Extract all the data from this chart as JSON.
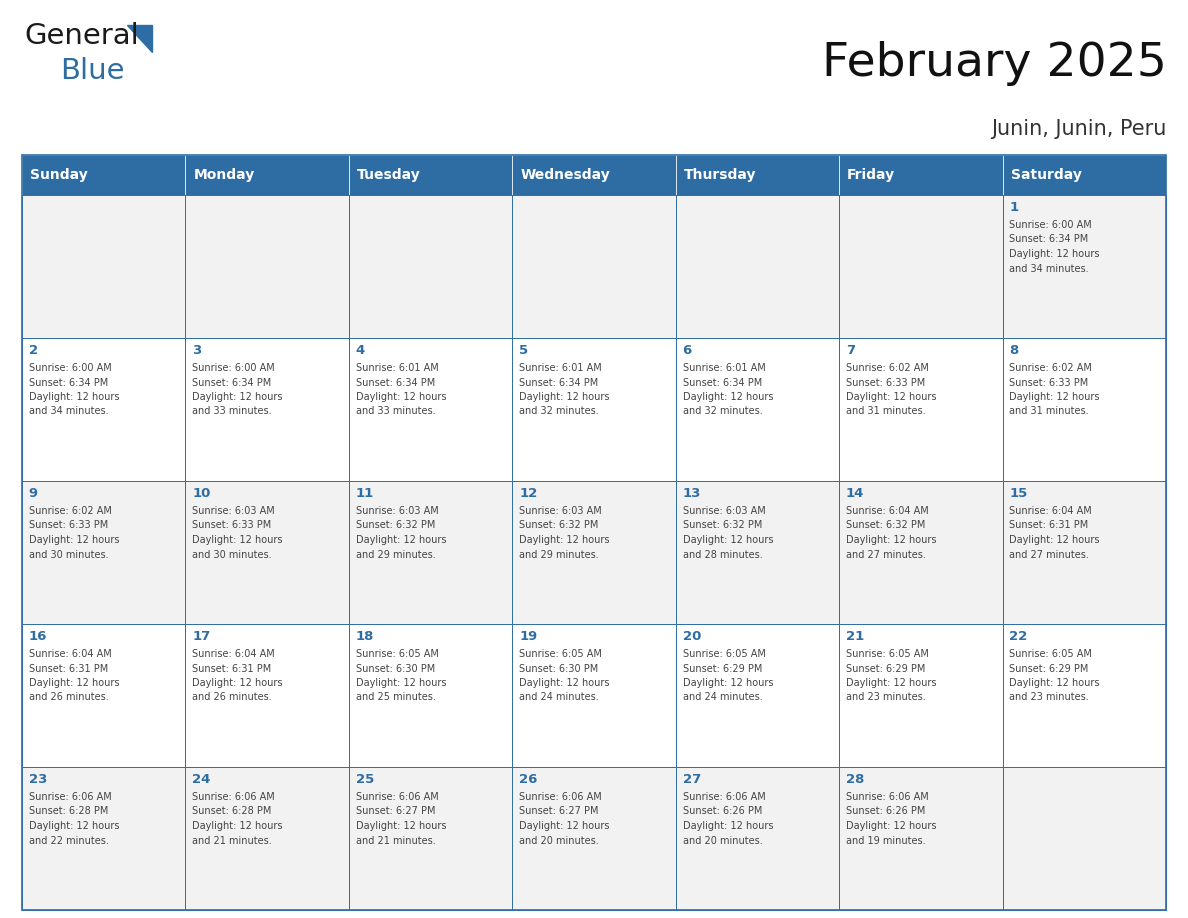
{
  "title": "February 2025",
  "subtitle": "Junin, Junin, Peru",
  "days_of_week": [
    "Sunday",
    "Monday",
    "Tuesday",
    "Wednesday",
    "Thursday",
    "Friday",
    "Saturday"
  ],
  "header_bg": "#2E6DA4",
  "header_text": "#FFFFFF",
  "cell_bg_odd": "#F2F2F2",
  "cell_bg_even": "#FFFFFF",
  "border_color": "#2E6DA4",
  "day_number_color": "#2E6DA4",
  "text_color": "#444444",
  "weeks": [
    [
      null,
      null,
      null,
      null,
      null,
      null,
      1
    ],
    [
      2,
      3,
      4,
      5,
      6,
      7,
      8
    ],
    [
      9,
      10,
      11,
      12,
      13,
      14,
      15
    ],
    [
      16,
      17,
      18,
      19,
      20,
      21,
      22
    ],
    [
      23,
      24,
      25,
      26,
      27,
      28,
      null
    ]
  ],
  "day_data": {
    "1": {
      "sunrise": "6:00 AM",
      "sunset": "6:34 PM",
      "hours": "12 hours",
      "minutes": "and 34 minutes."
    },
    "2": {
      "sunrise": "6:00 AM",
      "sunset": "6:34 PM",
      "hours": "12 hours",
      "minutes": "and 34 minutes."
    },
    "3": {
      "sunrise": "6:00 AM",
      "sunset": "6:34 PM",
      "hours": "12 hours",
      "minutes": "and 33 minutes."
    },
    "4": {
      "sunrise": "6:01 AM",
      "sunset": "6:34 PM",
      "hours": "12 hours",
      "minutes": "and 33 minutes."
    },
    "5": {
      "sunrise": "6:01 AM",
      "sunset": "6:34 PM",
      "hours": "12 hours",
      "minutes": "and 32 minutes."
    },
    "6": {
      "sunrise": "6:01 AM",
      "sunset": "6:34 PM",
      "hours": "12 hours",
      "minutes": "and 32 minutes."
    },
    "7": {
      "sunrise": "6:02 AM",
      "sunset": "6:33 PM",
      "hours": "12 hours",
      "minutes": "and 31 minutes."
    },
    "8": {
      "sunrise": "6:02 AM",
      "sunset": "6:33 PM",
      "hours": "12 hours",
      "minutes": "and 31 minutes."
    },
    "9": {
      "sunrise": "6:02 AM",
      "sunset": "6:33 PM",
      "hours": "12 hours",
      "minutes": "and 30 minutes."
    },
    "10": {
      "sunrise": "6:03 AM",
      "sunset": "6:33 PM",
      "hours": "12 hours",
      "minutes": "and 30 minutes."
    },
    "11": {
      "sunrise": "6:03 AM",
      "sunset": "6:32 PM",
      "hours": "12 hours",
      "minutes": "and 29 minutes."
    },
    "12": {
      "sunrise": "6:03 AM",
      "sunset": "6:32 PM",
      "hours": "12 hours",
      "minutes": "and 29 minutes."
    },
    "13": {
      "sunrise": "6:03 AM",
      "sunset": "6:32 PM",
      "hours": "12 hours",
      "minutes": "and 28 minutes."
    },
    "14": {
      "sunrise": "6:04 AM",
      "sunset": "6:32 PM",
      "hours": "12 hours",
      "minutes": "and 27 minutes."
    },
    "15": {
      "sunrise": "6:04 AM",
      "sunset": "6:31 PM",
      "hours": "12 hours",
      "minutes": "and 27 minutes."
    },
    "16": {
      "sunrise": "6:04 AM",
      "sunset": "6:31 PM",
      "hours": "12 hours",
      "minutes": "and 26 minutes."
    },
    "17": {
      "sunrise": "6:04 AM",
      "sunset": "6:31 PM",
      "hours": "12 hours",
      "minutes": "and 26 minutes."
    },
    "18": {
      "sunrise": "6:05 AM",
      "sunset": "6:30 PM",
      "hours": "12 hours",
      "minutes": "and 25 minutes."
    },
    "19": {
      "sunrise": "6:05 AM",
      "sunset": "6:30 PM",
      "hours": "12 hours",
      "minutes": "and 24 minutes."
    },
    "20": {
      "sunrise": "6:05 AM",
      "sunset": "6:29 PM",
      "hours": "12 hours",
      "minutes": "and 24 minutes."
    },
    "21": {
      "sunrise": "6:05 AM",
      "sunset": "6:29 PM",
      "hours": "12 hours",
      "minutes": "and 23 minutes."
    },
    "22": {
      "sunrise": "6:05 AM",
      "sunset": "6:29 PM",
      "hours": "12 hours",
      "minutes": "and 23 minutes."
    },
    "23": {
      "sunrise": "6:06 AM",
      "sunset": "6:28 PM",
      "hours": "12 hours",
      "minutes": "and 22 minutes."
    },
    "24": {
      "sunrise": "6:06 AM",
      "sunset": "6:28 PM",
      "hours": "12 hours",
      "minutes": "and 21 minutes."
    },
    "25": {
      "sunrise": "6:06 AM",
      "sunset": "6:27 PM",
      "hours": "12 hours",
      "minutes": "and 21 minutes."
    },
    "26": {
      "sunrise": "6:06 AM",
      "sunset": "6:27 PM",
      "hours": "12 hours",
      "minutes": "and 20 minutes."
    },
    "27": {
      "sunrise": "6:06 AM",
      "sunset": "6:26 PM",
      "hours": "12 hours",
      "minutes": "and 20 minutes."
    },
    "28": {
      "sunrise": "6:06 AM",
      "sunset": "6:26 PM",
      "hours": "12 hours",
      "minutes": "and 19 minutes."
    }
  },
  "logo_text1": "General",
  "logo_text2": "Blue",
  "logo_color1": "#1a1a1a",
  "logo_color2": "#2E6DA4",
  "logo_triangle_color": "#2E6DA4",
  "fig_width": 11.88,
  "fig_height": 9.18,
  "dpi": 100
}
